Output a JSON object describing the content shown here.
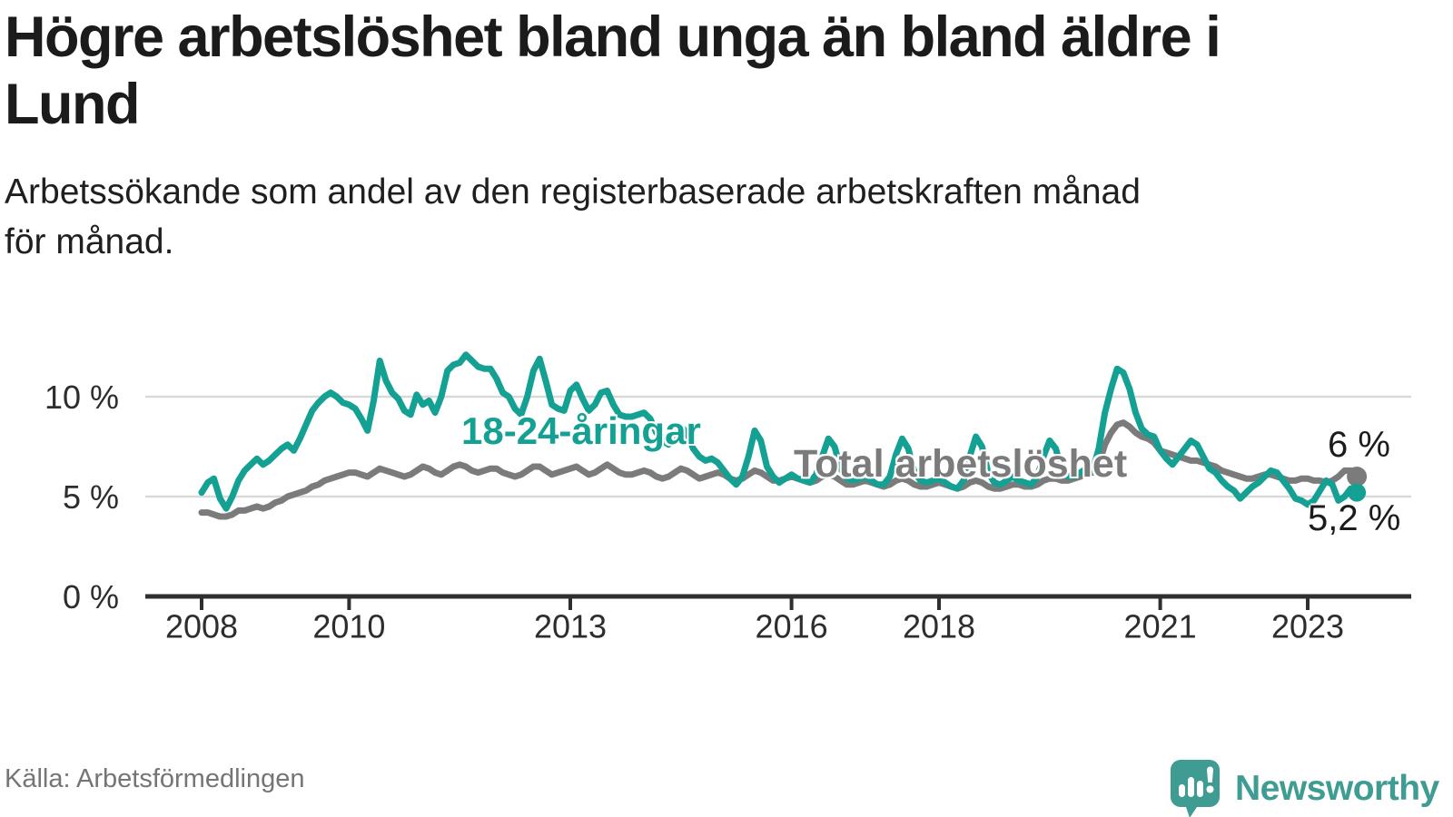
{
  "header": {
    "title": "Högre arbetslöshet bland unga än bland äldre i Lund",
    "title_lines": [
      "Högre arbetslöshet bland unga än bland äldre i",
      "Lund"
    ],
    "subtitle": "Arbetssökande som andel av den registerbaserade arbetskraften månad för månad.",
    "subtitle_lines": [
      "Arbetssökande som andel av den registerbaserade arbetskraften månad",
      "för månad."
    ]
  },
  "source_note": "Källa: Arbetsförmedlingen",
  "brand": {
    "name": "Newsworthy",
    "logo_icon": "speech-bubble-bar-chart-exclamation",
    "color": "#3f9c93"
  },
  "colors": {
    "youth_line": "#14a193",
    "total_line": "#7b7b7b",
    "grid": "#d9d9d9",
    "axis": "#2f2f2f",
    "text": "#1b1b1b"
  },
  "chart_data": {
    "type": "line",
    "title": "Högre arbetslöshet bland unga än bland äldre i Lund",
    "xlabel": "",
    "ylabel": "Arbetssökande som andel av den registerbaserade arbetskraften",
    "unit": "%",
    "frequency": "monthly",
    "x_start": "2008-01",
    "x_end": "2023-09",
    "ylim": [
      0,
      13
    ],
    "grid": "horizontal",
    "legend_position": "inline-labels",
    "x_ticks": [
      {
        "year": 2008,
        "label": "2008"
      },
      {
        "year": 2010,
        "label": "2010"
      },
      {
        "year": 2013,
        "label": "2013"
      },
      {
        "year": 2016,
        "label": "2016"
      },
      {
        "year": 2018,
        "label": "2018"
      },
      {
        "year": 2021,
        "label": "2021"
      },
      {
        "year": 2023,
        "label": "2023"
      }
    ],
    "y_ticks": [
      {
        "value": 0,
        "label": "0 %"
      },
      {
        "value": 5,
        "label": "5 %"
      },
      {
        "value": 10,
        "label": "10 %"
      }
    ],
    "series": [
      {
        "id": "total",
        "name": "Total arbetslöshet",
        "color": "#7b7b7b",
        "end_label": "6 %",
        "end_value": 6.0,
        "values": [
          4.2,
          4.2,
          4.1,
          4.0,
          4.0,
          4.1,
          4.3,
          4.3,
          4.4,
          4.5,
          4.4,
          4.5,
          4.7,
          4.8,
          5.0,
          5.1,
          5.2,
          5.3,
          5.5,
          5.6,
          5.8,
          5.9,
          6.0,
          6.1,
          6.2,
          6.2,
          6.1,
          6.0,
          6.2,
          6.4,
          6.3,
          6.2,
          6.1,
          6.0,
          6.1,
          6.3,
          6.5,
          6.4,
          6.2,
          6.1,
          6.3,
          6.5,
          6.6,
          6.5,
          6.3,
          6.2,
          6.3,
          6.4,
          6.4,
          6.2,
          6.1,
          6.0,
          6.1,
          6.3,
          6.5,
          6.5,
          6.3,
          6.1,
          6.2,
          6.3,
          6.4,
          6.5,
          6.3,
          6.1,
          6.2,
          6.4,
          6.6,
          6.4,
          6.2,
          6.1,
          6.1,
          6.2,
          6.3,
          6.2,
          6.0,
          5.9,
          6.0,
          6.2,
          6.4,
          6.3,
          6.1,
          5.9,
          6.0,
          6.1,
          6.2,
          6.1,
          5.9,
          5.8,
          5.9,
          6.1,
          6.3,
          6.2,
          6.0,
          5.8,
          5.8,
          5.9,
          6.0,
          5.9,
          5.8,
          5.7,
          5.8,
          6.0,
          6.1,
          6.0,
          5.8,
          5.6,
          5.6,
          5.7,
          5.8,
          5.7,
          5.6,
          5.5,
          5.6,
          5.8,
          5.9,
          5.8,
          5.6,
          5.5,
          5.5,
          5.6,
          5.7,
          5.6,
          5.5,
          5.4,
          5.5,
          5.7,
          5.8,
          5.7,
          5.5,
          5.4,
          5.4,
          5.5,
          5.6,
          5.6,
          5.5,
          5.5,
          5.6,
          5.8,
          5.9,
          5.9,
          5.8,
          5.8,
          5.9,
          6.0,
          6.2,
          6.2,
          6.6,
          7.6,
          8.2,
          8.6,
          8.7,
          8.5,
          8.2,
          8.0,
          7.9,
          7.7,
          7.3,
          7.2,
          7.1,
          7.0,
          6.9,
          6.8,
          6.8,
          6.7,
          6.6,
          6.5,
          6.3,
          6.2,
          6.1,
          6.0,
          5.9,
          5.9,
          6.0,
          6.1,
          6.1,
          6.0,
          5.9,
          5.8,
          5.8,
          5.9,
          5.9,
          5.8,
          5.8,
          5.7,
          5.8,
          6.0,
          6.3,
          6.3,
          6.0
        ]
      },
      {
        "id": "youth",
        "name": "18-24-åringar",
        "color": "#14a193",
        "end_label": "5,2 %",
        "end_value": 5.2,
        "values": [
          5.2,
          5.7,
          5.9,
          4.9,
          4.4,
          5.0,
          5.8,
          6.3,
          6.6,
          6.9,
          6.6,
          6.8,
          7.1,
          7.4,
          7.6,
          7.3,
          7.9,
          8.6,
          9.3,
          9.7,
          10.0,
          10.2,
          10.0,
          9.7,
          9.6,
          9.4,
          8.9,
          8.3,
          9.8,
          11.8,
          10.8,
          10.2,
          9.9,
          9.3,
          9.1,
          10.1,
          9.6,
          9.8,
          9.2,
          10.0,
          11.3,
          11.6,
          11.7,
          12.1,
          11.8,
          11.5,
          11.4,
          11.4,
          10.9,
          10.2,
          10.0,
          9.4,
          9.1,
          10.0,
          11.3,
          11.9,
          10.8,
          9.6,
          9.4,
          9.3,
          10.3,
          10.6,
          9.9,
          9.3,
          9.6,
          10.2,
          10.3,
          9.6,
          9.1,
          9.0,
          9.0,
          9.1,
          9.2,
          8.9,
          8.2,
          7.8,
          7.6,
          8.0,
          8.5,
          8.2,
          7.4,
          7.0,
          6.8,
          6.9,
          6.7,
          6.3,
          5.9,
          5.6,
          6.0,
          7.0,
          8.3,
          7.8,
          6.5,
          6.0,
          5.7,
          5.9,
          6.1,
          5.9,
          5.8,
          5.7,
          6.1,
          7.0,
          7.9,
          7.5,
          6.4,
          5.9,
          5.8,
          5.9,
          6.0,
          5.8,
          5.6,
          5.6,
          6.0,
          7.1,
          7.9,
          7.4,
          6.2,
          5.8,
          5.7,
          5.8,
          5.9,
          5.7,
          5.5,
          5.4,
          5.8,
          7.0,
          8.0,
          7.5,
          6.2,
          5.7,
          5.6,
          5.8,
          6.0,
          5.8,
          5.7,
          5.6,
          6.0,
          7.0,
          7.8,
          7.4,
          6.3,
          6.0,
          6.0,
          6.2,
          6.4,
          6.3,
          7.4,
          9.2,
          10.4,
          11.4,
          11.2,
          10.4,
          9.2,
          8.4,
          8.1,
          8.0,
          7.3,
          6.9,
          6.6,
          7.0,
          7.4,
          7.8,
          7.6,
          7.0,
          6.4,
          6.2,
          5.8,
          5.5,
          5.3,
          4.9,
          5.2,
          5.5,
          5.7,
          6.0,
          6.3,
          6.2,
          5.8,
          5.4,
          4.9,
          4.8,
          4.6,
          4.8,
          5.3,
          5.8,
          5.6,
          4.8,
          5.0,
          5.4,
          5.2
        ]
      }
    ]
  }
}
